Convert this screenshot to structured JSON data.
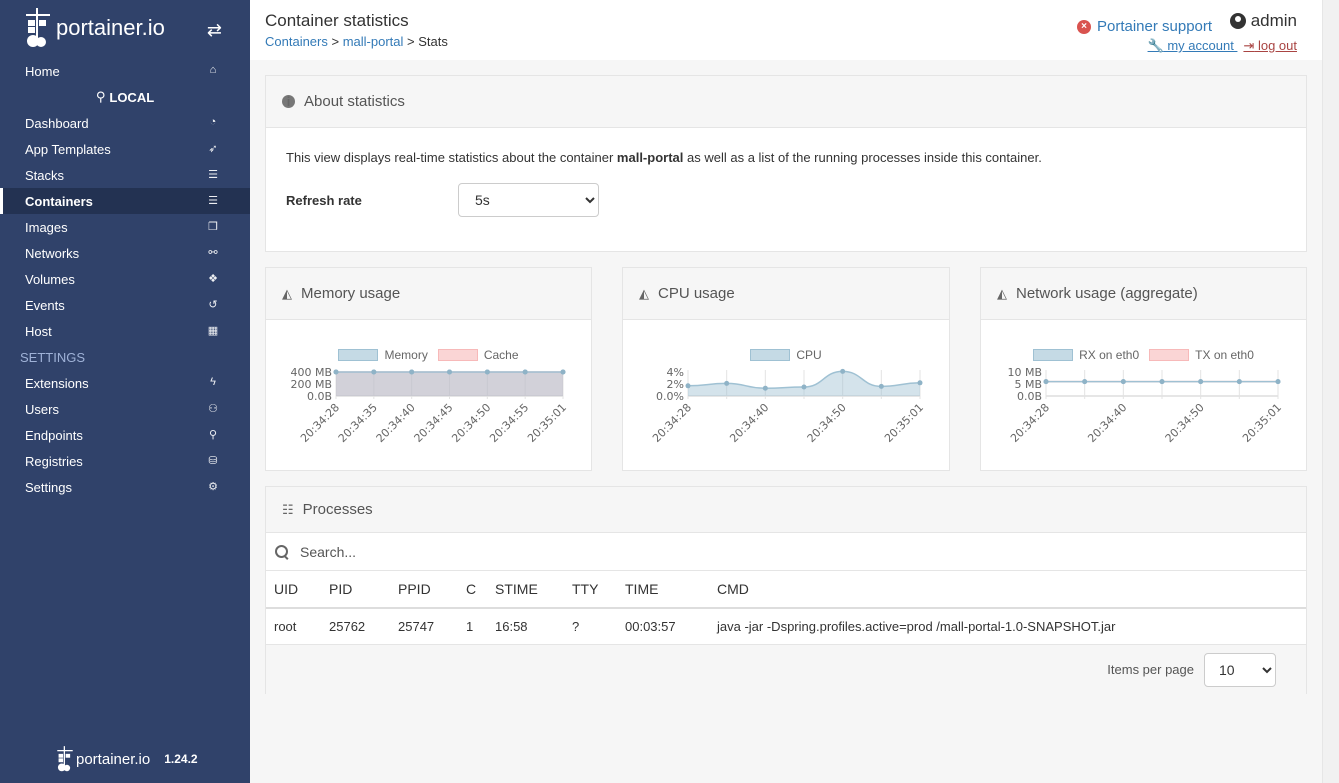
{
  "brand": {
    "logo_text": "portainer.io",
    "version": "1.24.2"
  },
  "sidebar": {
    "items": [
      {
        "label": "Home",
        "icon": "home-icon"
      },
      {
        "label": "LOCAL",
        "icon": "plug-icon"
      },
      {
        "label": "Dashboard",
        "icon": "dashboard-icon"
      },
      {
        "label": "App Templates",
        "icon": "rocket-icon"
      },
      {
        "label": "Stacks",
        "icon": "list-icon"
      },
      {
        "label": "Containers",
        "icon": "server-icon",
        "active": true
      },
      {
        "label": "Images",
        "icon": "clone-icon"
      },
      {
        "label": "Networks",
        "icon": "sitemap-icon"
      },
      {
        "label": "Volumes",
        "icon": "cubes-icon"
      },
      {
        "label": "Events",
        "icon": "history-icon"
      },
      {
        "label": "Host",
        "icon": "th-icon"
      },
      {
        "label": "SETTINGS"
      },
      {
        "label": "Extensions",
        "icon": "bolt-icon"
      },
      {
        "label": "Users",
        "icon": "users-icon"
      },
      {
        "label": "Endpoints",
        "icon": "plug-icon"
      },
      {
        "label": "Registries",
        "icon": "database-icon"
      },
      {
        "label": "Settings",
        "icon": "cogs-icon"
      }
    ]
  },
  "header": {
    "title": "Container statistics",
    "breadcrumb": {
      "containers": "Containers",
      "container": "mall-portal",
      "current": "Stats",
      "separator": ">"
    },
    "support": "Portainer support",
    "username": "admin",
    "my_account": " my account ",
    "log_out": " log out"
  },
  "about": {
    "title": "About statistics",
    "text_before": "This view displays real-time statistics about the container ",
    "container_name": "mall-portal",
    "text_after": " as well as a list of the running processes inside this container.",
    "refresh_label": "Refresh rate",
    "refresh_value": "5s"
  },
  "memory": {
    "title": "Memory usage"
  },
  "cpu": {
    "title": "CPU usage"
  },
  "network": {
    "title": "Network usage (aggregate)"
  },
  "chart_data": [
    {
      "type": "area",
      "title": "Memory usage",
      "x": [
        "20:34:28",
        "20:34:35",
        "20:34:40",
        "20:34:45",
        "20:34:50",
        "20:34:55",
        "20:35:01"
      ],
      "series": [
        {
          "name": "Memory",
          "values": [
            400,
            400,
            400,
            400,
            400,
            400,
            400
          ],
          "color": "#9fc1d3"
        },
        {
          "name": "Cache",
          "values": [
            400,
            400,
            400,
            400,
            400,
            400,
            400
          ],
          "color": "#f7b9b9"
        }
      ],
      "yticks": [
        "400 MB",
        "200 MB",
        "0.0B"
      ],
      "ylim": [
        0,
        400
      ]
    },
    {
      "type": "area",
      "title": "CPU usage",
      "x": [
        "20:34:28",
        "",
        "20:34:40",
        "",
        "20:34:50",
        "",
        "20:35:01"
      ],
      "series": [
        {
          "name": "CPU",
          "values": [
            1.7,
            2.1,
            1.3,
            1.5,
            4.1,
            1.6,
            2.2
          ],
          "color": "#9fc1d3"
        }
      ],
      "yticks": [
        "4%",
        "2%",
        "0.0%"
      ],
      "ylim": [
        0,
        4
      ]
    },
    {
      "type": "line",
      "title": "Network usage (aggregate)",
      "x": [
        "20:34:28",
        "",
        "20:34:40",
        "",
        "20:34:50",
        "",
        "20:35:01"
      ],
      "series": [
        {
          "name": "RX on eth0",
          "values": [
            6,
            6,
            6,
            6,
            6,
            6,
            6
          ],
          "color": "#9fc1d3"
        },
        {
          "name": "TX on eth0",
          "values": [
            6,
            6,
            6,
            6,
            6,
            6,
            6
          ],
          "color": "#f7b9b9"
        }
      ],
      "yticks": [
        "10 MB",
        "5 MB",
        "0.0B"
      ],
      "ylim": [
        0,
        10
      ]
    }
  ],
  "processes": {
    "title": "Processes",
    "search_placeholder": "Search...",
    "columns": [
      "UID",
      "PID",
      "PPID",
      "C",
      "STIME",
      "TTY",
      "TIME",
      "CMD"
    ],
    "rows": [
      [
        "root",
        "25762",
        "25747",
        "1",
        "16:58",
        "?",
        "00:03:57",
        "java -jar -Dspring.profiles.active=prod /mall-portal-1.0-SNAPSHOT.jar"
      ]
    ],
    "items_per_page_label": "Items per page",
    "items_per_page": "10"
  },
  "colors": {
    "sidebar": "#30426a",
    "sidebar_active": "#233252",
    "link": "#337ab7",
    "logout": "#a94442"
  }
}
